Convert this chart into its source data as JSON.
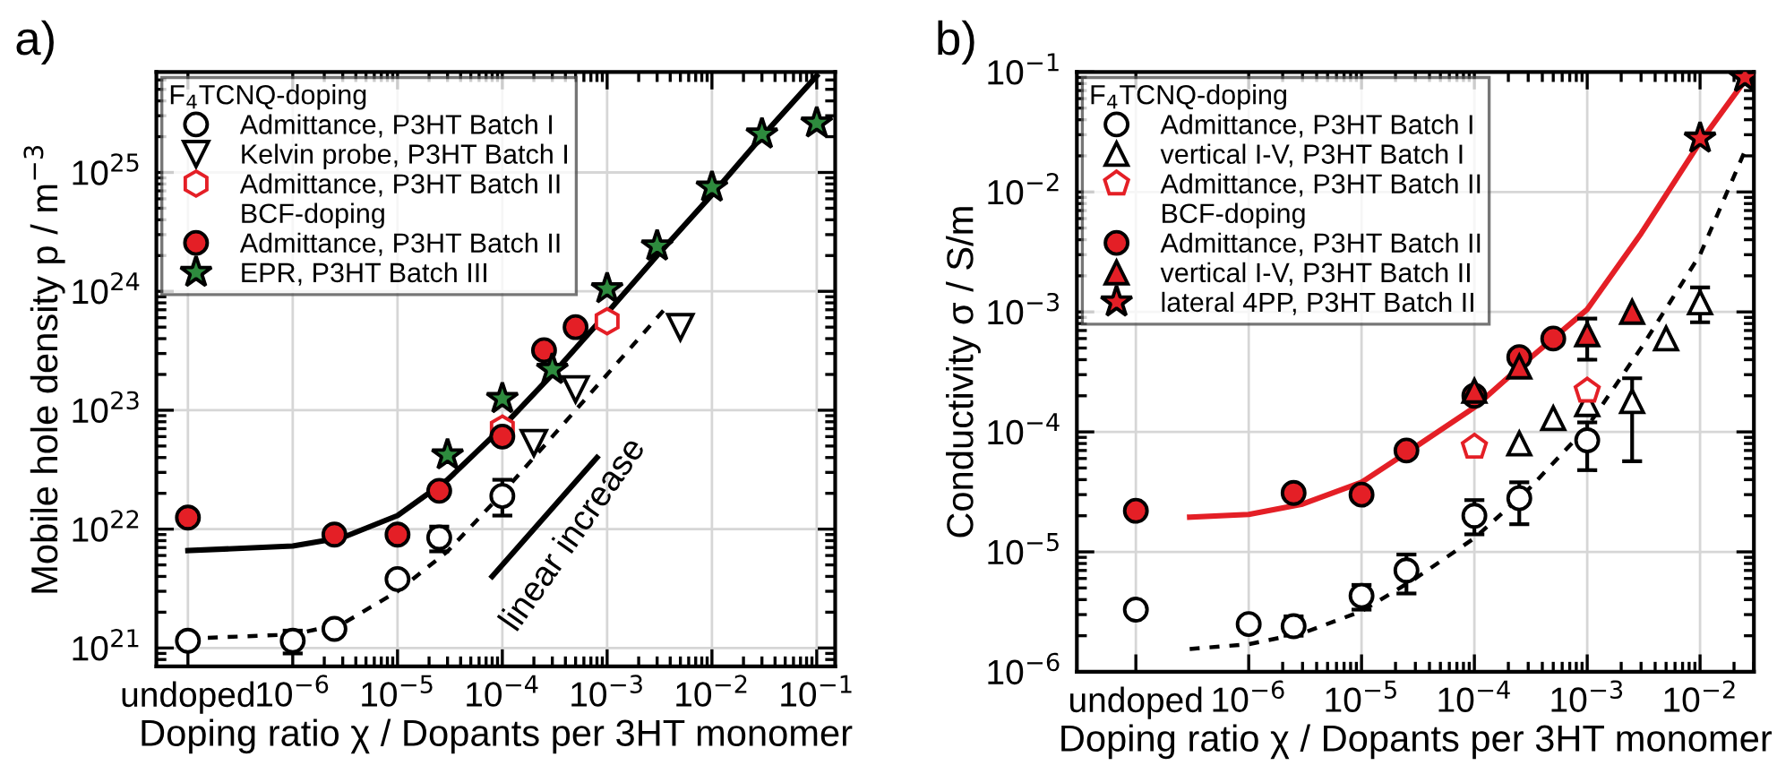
{
  "chart_data": [
    {
      "type": "scatter",
      "title": "a)",
      "xlabel": "Doping ratio χ / Dopants per 3HT monomer",
      "ylabel": "Mobile hole density p / m$^{−3}$",
      "log": "xy",
      "grid": true,
      "legend": "top left",
      "legend_title": "F$_{4}$TCNQ-doping",
      "xlim": [
        5e-08,
        0.15
      ],
      "ylim": [
        7e+20,
        7e+25
      ],
      "xticks": [
        {
          "value": 1e-07,
          "label": "undoped"
        },
        {
          "value": 1e-06,
          "label": "10$^{−6}$"
        },
        {
          "value": 1e-05,
          "label": "10$^{−5}$"
        },
        {
          "value": 0.0001,
          "label": "10$^{−4}$"
        },
        {
          "value": 0.001,
          "label": "10$^{−3}$"
        },
        {
          "value": 0.01,
          "label": "10$^{−2}$"
        },
        {
          "value": 0.1,
          "label": "10$^{−1}$"
        }
      ],
      "yticks": [
        {
          "value": 1e+21,
          "label": "10$^{21}$"
        },
        {
          "value": 1e+22,
          "label": "10$^{22}$"
        },
        {
          "value": 1e+23,
          "label": "10$^{23}$"
        },
        {
          "value": 1e+24,
          "label": "10$^{24}$"
        },
        {
          "value": 1e+25,
          "label": "10$^{25}$"
        }
      ],
      "annotations": [
        "BCF-doping",
        "linear increase"
      ],
      "series": [
        {
          "name": "Admittance, P3HT Batch I",
          "color": "#000000",
          "marker": "circle-open",
          "x": [
            1e-07,
            1e-06,
            2.5e-06,
            1e-05,
            2.5e-05,
            0.0001
          ],
          "values": [
            1.15e+21,
            1.15e+21,
            1.45e+21,
            3.8e+21,
            8.5e+21,
            1.9e+22
          ],
          "errors": [
            null,
            [
              9e+20,
              1.4e+21
            ],
            null,
            null,
            [
              6.5e+21,
              1.05e+22
            ],
            [
              1.3e+22,
              2.6e+22
            ]
          ]
        },
        {
          "name": "Kelvin probe, P3HT Batch I",
          "color": "#000000",
          "marker": "triangle_down-open",
          "x": [
            0.0002,
            0.0005,
            0.005
          ],
          "values": [
            5.3e+22,
            1.5e+23,
            5e+23
          ]
        },
        {
          "name": "Admittance, P3HT Batch II",
          "color": "#e41f26",
          "x": [
            0.0001,
            0.001
          ],
          "values": [
            7e+22,
            5.6e+23
          ]
        },
        {
          "name": "Admittance, P3HT Batch II",
          "color": "#e41f26",
          "marker": "circle",
          "x": [
            1e-07,
            2.5e-06,
            1e-05,
            2.5e-05,
            0.0001,
            0.00025,
            0.0005
          ],
          "values": [
            1.25e+22,
            9e+21,
            9e+21,
            2.1e+22,
            6e+22,
            3.2e+23,
            5e+23
          ]
        },
        {
          "name": "EPR, P3HT Batch III",
          "color": "#2e8b3e",
          "marker": "star",
          "x": [
            3e-05,
            0.0001,
            0.0003,
            0.001,
            0.003,
            0.01,
            0.03,
            0.1
          ],
          "values": [
            4.2e+22,
            1.25e+23,
            2.2e+23,
            1.05e+24,
            2.4e+24,
            7.5e+24,
            2.1e+25,
            2.6e+25
          ]
        },
        {
          "type": "line",
          "color": "#000000",
          "line_style": "solid",
          "x": [
            1e-07,
            1e-06,
            3e-06,
            1e-05,
            3e-05,
            0.0001,
            0.0003,
            0.001,
            0.003,
            0.01,
            0.03,
            0.1
          ],
          "values": [
            6.6e+21,
            7.2e+21,
            8.5e+21,
            1.3e+22,
            2.6e+22,
            7.2e+22,
            2e+23,
            6.6e+23,
            2e+24,
            6.5e+24,
            2e+25,
            6.5e+25
          ]
        },
        {
          "type": "line",
          "color": "#000000",
          "line_style": "dashed",
          "x": [
            1e-07,
            1e-06,
            3e-06,
            1e-05,
            3e-05,
            0.0001,
            0.0003,
            0.001,
            0.0035
          ],
          "values": [
            1.2e+21,
            1.3e+21,
            1.6e+21,
            3e+21,
            6.5e+21,
            2e+22,
            6e+22,
            2e+23,
            7e+23
          ]
        },
        {
          "type": "line",
          "color": "#000000",
          "line_style": "solid",
          "x": [
            8e-05,
            0.0008
          ],
          "values": [
            4e+21,
            4e+22
          ]
        }
      ]
    },
    {
      "type": "scatter",
      "title": "b)",
      "xlabel": "Doping ratio χ / Dopants per 3HT monomer",
      "ylabel": "Conductivity σ / S/m",
      "log": "xy",
      "grid": true,
      "legend": "top left",
      "legend_title": "F$_{4}$TCNQ-doping",
      "xlim": [
        3e-08,
        0.03
      ],
      "ylim": [
        1e-06,
        0.1
      ],
      "xticks": [
        {
          "value": 1e-07,
          "label": "undoped"
        },
        {
          "value": 1e-06,
          "label": "10$^{−6}$"
        },
        {
          "value": 1e-05,
          "label": "10$^{−5}$"
        },
        {
          "value": 0.0001,
          "label": "10$^{−4}$"
        },
        {
          "value": 0.001,
          "label": "10$^{−3}$"
        },
        {
          "value": 0.01,
          "label": "10$^{−2}$"
        }
      ],
      "yticks": [
        {
          "value": 1e-06,
          "label": "10$^{−6}$"
        },
        {
          "value": 1e-05,
          "label": "10$^{−5}$"
        },
        {
          "value": 0.0001,
          "label": "10$^{−4}$"
        },
        {
          "value": 0.001,
          "label": "10$^{−3}$"
        },
        {
          "value": 0.01,
          "label": "10$^{−2}$"
        },
        {
          "value": 0.1,
          "label": "10$^{−1}$"
        }
      ],
      "annotations": [
        "BCF-doping"
      ],
      "series": [
        {
          "name": "Admittance, P3HT Batch I",
          "color": "#000000",
          "marker": "circle-open",
          "x": [
            1e-07,
            1e-06,
            2.5e-06,
            1e-05,
            2.5e-05,
            0.0001,
            0.00025,
            0.001
          ],
          "values": [
            3.3e-06,
            2.5e-06,
            2.4e-06,
            4.3e-06,
            7e-06,
            2e-05,
            2.8e-05,
            8.5e-05
          ],
          "errors": [
            null,
            null,
            [
              2e-06,
              2.9e-06
            ],
            [
              3.3e-06,
              5.3e-06
            ],
            [
              4.5e-06,
              9.5e-06
            ],
            [
              1.4e-05,
              2.7e-05
            ],
            [
              1.7e-05,
              3.8e-05
            ],
            [
              4.8e-05,
              0.00012
            ]
          ]
        },
        {
          "name": "vertical I-V, P3HT Batch I",
          "color": "#000000",
          "marker": "triangle-open",
          "x": [
            0.00025,
            0.0005,
            0.001,
            0.0025,
            0.005,
            0.01
          ],
          "values": [
            8e-05,
            0.00013,
            0.00017,
            0.00018,
            0.0006,
            0.0012
          ],
          "errors": [
            null,
            null,
            null,
            [
              5.7e-05,
              0.00028
            ],
            null,
            [
              0.00082,
              0.0016
            ]
          ]
        },
        {
          "name": "Admittance, P3HT Batch II",
          "color": "#e41f26",
          "x": [
            0.0001,
            0.001
          ],
          "values": [
            7.5e-05,
            0.00022
          ]
        },
        {
          "name": "Admittance, P3HT Batch II",
          "color": "#e41f26",
          "marker": "circle",
          "x": [
            1e-07,
            2.5e-06,
            1e-05,
            2.5e-05,
            0.0001,
            0.00025,
            0.0005
          ],
          "values": [
            2.2e-05,
            3.1e-05,
            3e-05,
            7e-05,
            0.0002,
            0.00042,
            0.0006
          ]
        },
        {
          "name": "vertical I-V, P3HT Batch II",
          "color": "#e41f26",
          "marker": "triangle",
          "x": [
            0.0001,
            0.00025,
            0.001,
            0.0025
          ],
          "values": [
            0.00022,
            0.00035,
            0.00065,
            0.001
          ],
          "errors": [
            null,
            null,
            [
              0.0004,
              0.00088
            ],
            null
          ]
        },
        {
          "name": "lateral 4PP, P3HT Batch II",
          "color": "#e41f26",
          "marker": "star",
          "x": [
            0.01,
            0.025
          ],
          "values": [
            0.028,
            0.09
          ]
        },
        {
          "type": "line",
          "color": "#e41f26",
          "line_style": "solid",
          "x": [
            3e-07,
            1e-06,
            3e-06,
            1e-05,
            3e-05,
            0.0001,
            0.0003,
            0.001,
            0.003,
            0.01,
            0.025
          ],
          "values": [
            1.95e-05,
            2.05e-05,
            2.5e-05,
            3.8e-05,
            7.5e-05,
            0.00016,
            0.0004,
            0.00105,
            0.0045,
            0.026,
            0.085
          ]
        },
        {
          "type": "line",
          "color": "#000000",
          "line_style": "dashed",
          "x": [
            3e-07,
            1e-06,
            3e-06,
            1e-05,
            3e-05,
            0.0001,
            0.0003,
            0.001,
            0.003,
            0.01,
            0.025
          ],
          "values": [
            1.55e-06,
            1.7e-06,
            2.1e-06,
            3.2e-06,
            6e-06,
            1.3e-05,
            3.3e-05,
            0.00011,
            0.0005,
            0.003,
            0.022
          ]
        }
      ]
    }
  ]
}
